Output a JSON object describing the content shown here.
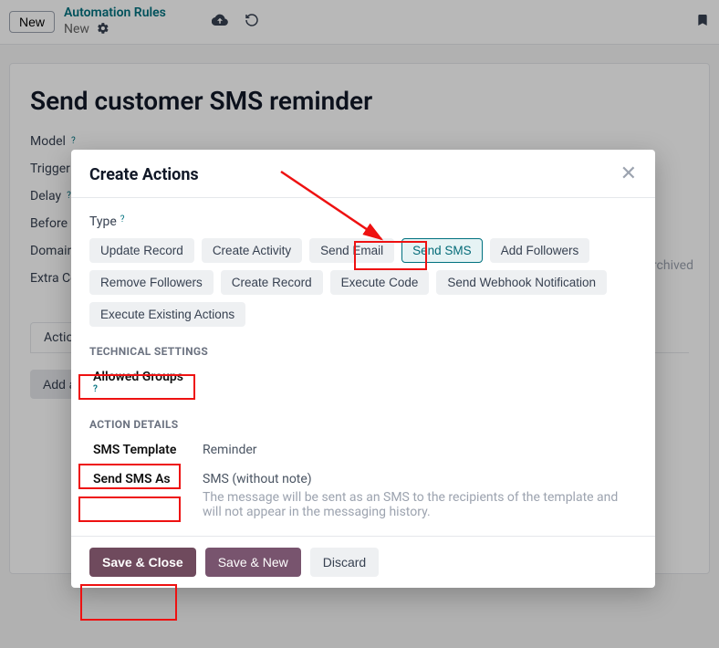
{
  "topbar": {
    "new_label": "New",
    "breadcrumb_title": "Automation Rules",
    "breadcrumb_sub": "New"
  },
  "bg_form": {
    "title": "Send customer SMS reminder",
    "model_label": "Model",
    "trigger_label": "Trigger",
    "delay_label": "Delay",
    "before_update_label": "Before U",
    "domain_label": "Domain",
    "extra_conditions_label": "Extra Co",
    "archived_badge": "archived",
    "tab_actions": "Actio",
    "add_action_label": "Add a"
  },
  "modal": {
    "title": "Create Actions",
    "type_label": "Type",
    "type_options": [
      "Update Record",
      "Create Activity",
      "Send Email",
      "Send SMS",
      "Add Followers",
      "Remove Followers",
      "Create Record",
      "Execute Code",
      "Send Webhook Notification",
      "Execute Existing Actions"
    ],
    "selected_type_index": 3,
    "tech_section": "TECHNICAL SETTINGS",
    "allowed_groups_label": "Allowed Groups",
    "action_section": "ACTION DETAILS",
    "sms_template_label": "SMS Template",
    "sms_template_value": "Reminder",
    "send_sms_as_label": "Send SMS As",
    "send_sms_as_value": "SMS (without note)",
    "send_sms_as_help": "The message will be sent as an SMS to the recipients of the template and will not appear in the messaging history.",
    "save_close_label": "Save & Close",
    "save_new_label": "Save & New",
    "discard_label": "Discard"
  },
  "colors": {
    "accent": "#00717f",
    "primary_btn": "#6f4a5d",
    "annotation": "#e11"
  }
}
